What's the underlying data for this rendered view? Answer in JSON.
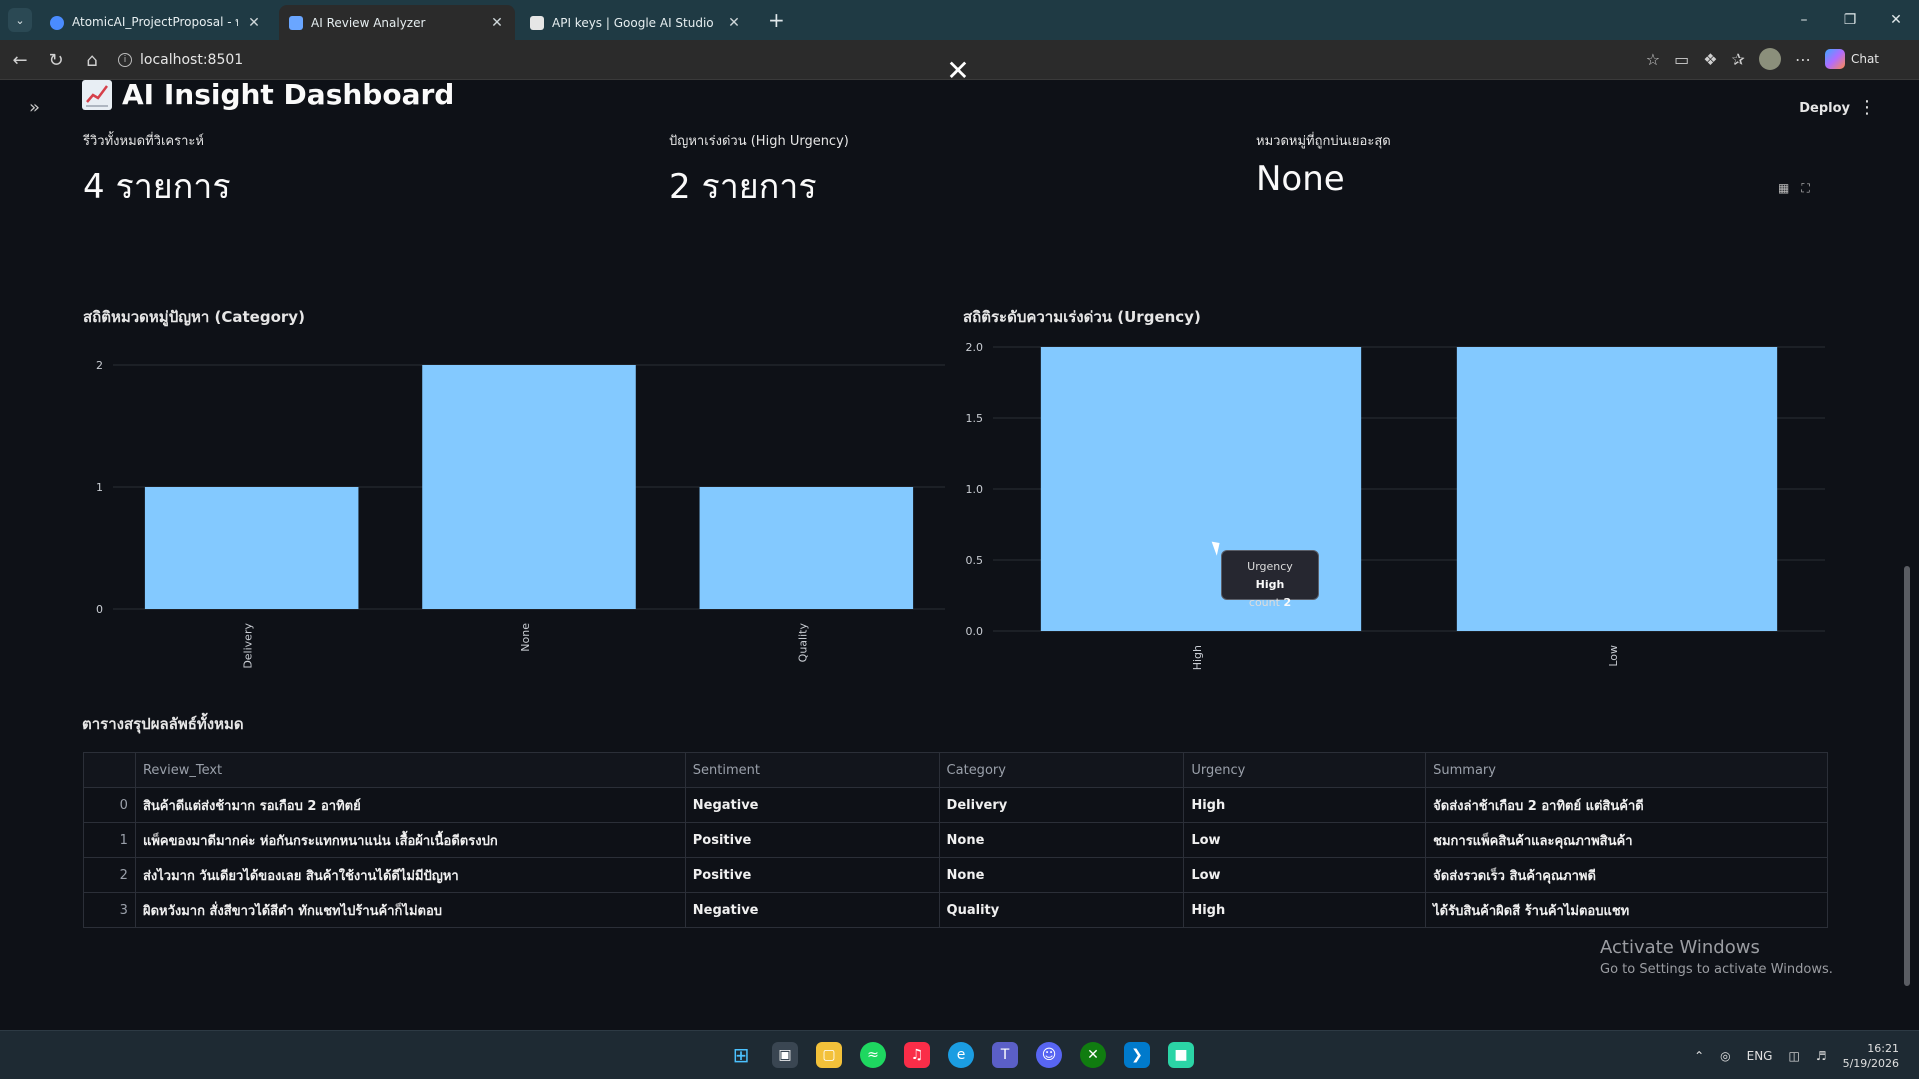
{
  "browser": {
    "tabs": [
      {
        "title": "AtomicAI_ProjectProposal - พรีเซน",
        "active": false,
        "favicon_color": "#4a8cff"
      },
      {
        "title": "AI Review Analyzer",
        "active": true,
        "favicon_color": "#6aa6ff"
      },
      {
        "title": "API keys | Google AI Studio",
        "active": false,
        "favicon_color": "#e6e6e6"
      }
    ],
    "url": "localhost:8501",
    "chat_label": "Chat"
  },
  "app": {
    "deploy_label": "Deploy",
    "page_title": "AI Insight Dashboard",
    "metrics": [
      {
        "label": "รีวิวทั้งหมดที่วิเคราะห์",
        "value": "4 รายการ"
      },
      {
        "label": "ปัญหาเร่งด่วน (High Urgency)",
        "value": "2 รายการ"
      },
      {
        "label": "หมวดหมู่ที่ถูกบ่นเยอะสุด",
        "value": "None"
      }
    ],
    "charts_titles": {
      "category": "สถิติหมวดหมู่ปัญหา (Category)",
      "urgency": "สถิติระดับความเร่งด่วน (Urgency)"
    },
    "tooltip": {
      "key1": "Urgency",
      "val1": "High",
      "key2": "count",
      "val2": "2"
    },
    "table": {
      "title": "ตารางสรุปผลลัพธ์ทั้งหมด",
      "columns": [
        "",
        "Review_Text",
        "Sentiment",
        "Category",
        "Urgency",
        "Summary"
      ],
      "rows": [
        [
          "0",
          "สินค้าดีแต่ส่งช้ามาก รอเกือบ 2 อาทิตย์",
          "Negative",
          "Delivery",
          "High",
          "จัดส่งล่าช้าเกือบ 2 อาทิตย์ แต่สินค้าดี"
        ],
        [
          "1",
          "แพ็คของมาดีมากค่ะ ห่อกันกระแทกหนาแน่น เสื้อผ้าเนื้อดีตรงปก",
          "Positive",
          "None",
          "Low",
          "ชมการแพ็คสินค้าและคุณภาพสินค้า"
        ],
        [
          "2",
          "ส่งไวมาก วันเดียวได้ของเลย สินค้าใช้งานได้ดีไม่มีปัญหา",
          "Positive",
          "None",
          "Low",
          "จัดส่งรวดเร็ว สินค้าคุณภาพดี"
        ],
        [
          "3",
          "ผิดหวังมาก สั่งสีขาวได้สีดำ ทักแชทไปร้านค้าก็ไม่ตอบ",
          "Negative",
          "Quality",
          "High",
          "ได้รับสินค้าผิดสี ร้านค้าไม่ตอบแชท"
        ]
      ]
    },
    "watermark": {
      "line1": "Activate Windows",
      "line2": "Go to Settings to activate Windows."
    }
  },
  "taskbar": {
    "lang": "ENG",
    "time": "16:21",
    "date": "5/19/2026"
  },
  "chart_data": [
    {
      "type": "bar",
      "title": "สถิติหมวดหมู่ปัญหา (Category)",
      "categories": [
        "Delivery",
        "None",
        "Quality"
      ],
      "values": [
        1,
        2,
        1
      ],
      "ylim": [
        0,
        2
      ],
      "yticks": [
        0,
        1,
        2
      ],
      "color": "#83c9ff",
      "grid": true
    },
    {
      "type": "bar",
      "title": "สถิติระดับความเร่งด่วน (Urgency)",
      "categories": [
        "High",
        "Low"
      ],
      "values": [
        2,
        2
      ],
      "ylim": [
        0,
        2
      ],
      "yticks": [
        0.0,
        0.5,
        1.0,
        1.5,
        2.0
      ],
      "color": "#83c9ff",
      "grid": true
    }
  ]
}
